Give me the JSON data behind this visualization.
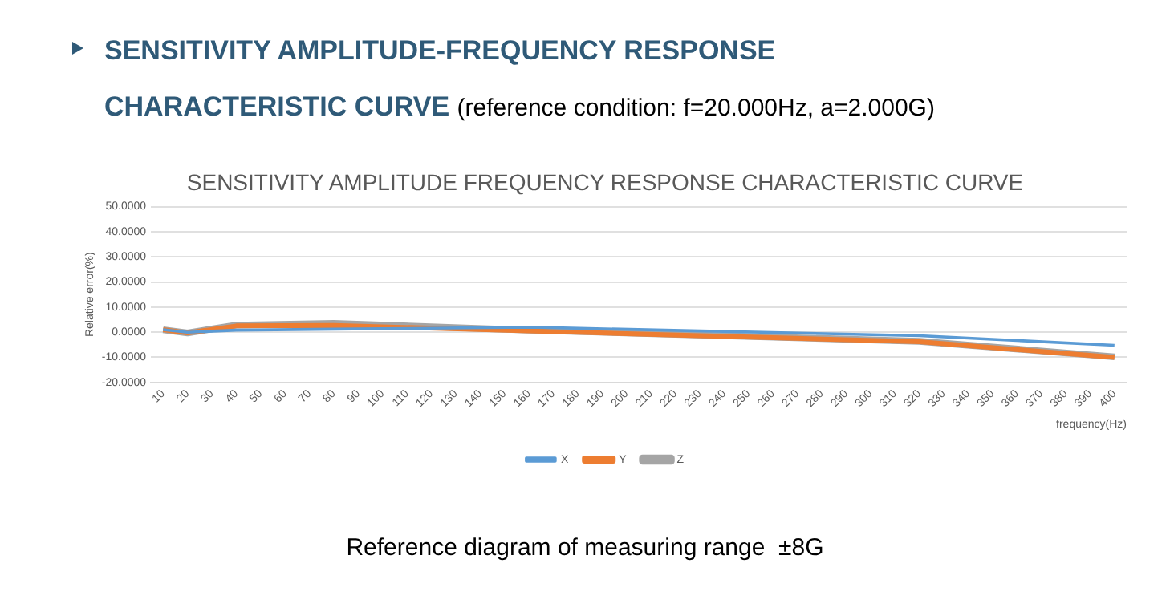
{
  "chart_data": {
    "type": "line",
    "title": "SENSITIVITY AMPLITUDE FREQUENCY RESPONSE CHARACTERISTIC CURVE",
    "xlabel": "frequency(Hz)",
    "ylabel": "Relative error(%)",
    "annotations": [
      "SENSITIVITY AMPLITUDE-FREQUENCY RESPONSE CHARACTERISTIC CURVE",
      "(reference condition: f=20.000Hz, a=2.000G)",
      "Reference diagram of measuring range  ±8G"
    ],
    "series": [
      {
        "name": "X",
        "color": "#5b9bd5",
        "x": [
          10,
          20,
          40,
          80,
          160,
          320,
          400
        ],
        "values": [
          1,
          0,
          0.8,
          1.2,
          2,
          -1.4,
          -5.2
        ]
      },
      {
        "name": "Y",
        "color": "#ed7d31",
        "x": [
          10,
          20,
          40,
          80,
          160,
          320,
          400
        ],
        "values": [
          1,
          -0.3,
          2.5,
          2.7,
          0.5,
          -3.8,
          -10
        ]
      },
      {
        "name": "Z",
        "color": "#a5a5a5",
        "x": [
          10,
          20,
          40,
          80,
          160,
          320,
          400
        ],
        "values": [
          1,
          -0.3,
          2.8,
          3.5,
          0.8,
          -3.6,
          -9.8
        ]
      }
    ],
    "xlim": [
      5,
      405
    ],
    "xticks": [
      10,
      20,
      30,
      40,
      50,
      60,
      70,
      80,
      90,
      100,
      110,
      120,
      130,
      140,
      150,
      160,
      170,
      180,
      190,
      200,
      210,
      220,
      230,
      240,
      250,
      260,
      270,
      280,
      290,
      300,
      310,
      320,
      330,
      340,
      350,
      360,
      370,
      380,
      390,
      400
    ],
    "ylim": [
      -20,
      50
    ],
    "yticks": [
      {
        "value": -20,
        "label": "-20.0000"
      },
      {
        "value": -10,
        "label": "-10.0000"
      },
      {
        "value": 0,
        "label": "0.0000"
      },
      {
        "value": 10,
        "label": "10.0000"
      },
      {
        "value": 20,
        "label": "20.0000"
      },
      {
        "value": 30,
        "label": "30.0000"
      },
      {
        "value": 40,
        "label": "40.0000"
      },
      {
        "value": 50,
        "label": "50.0000"
      }
    ],
    "grid": "y",
    "legend": "bottom",
    "marker": "none",
    "line_style": "solid"
  }
}
